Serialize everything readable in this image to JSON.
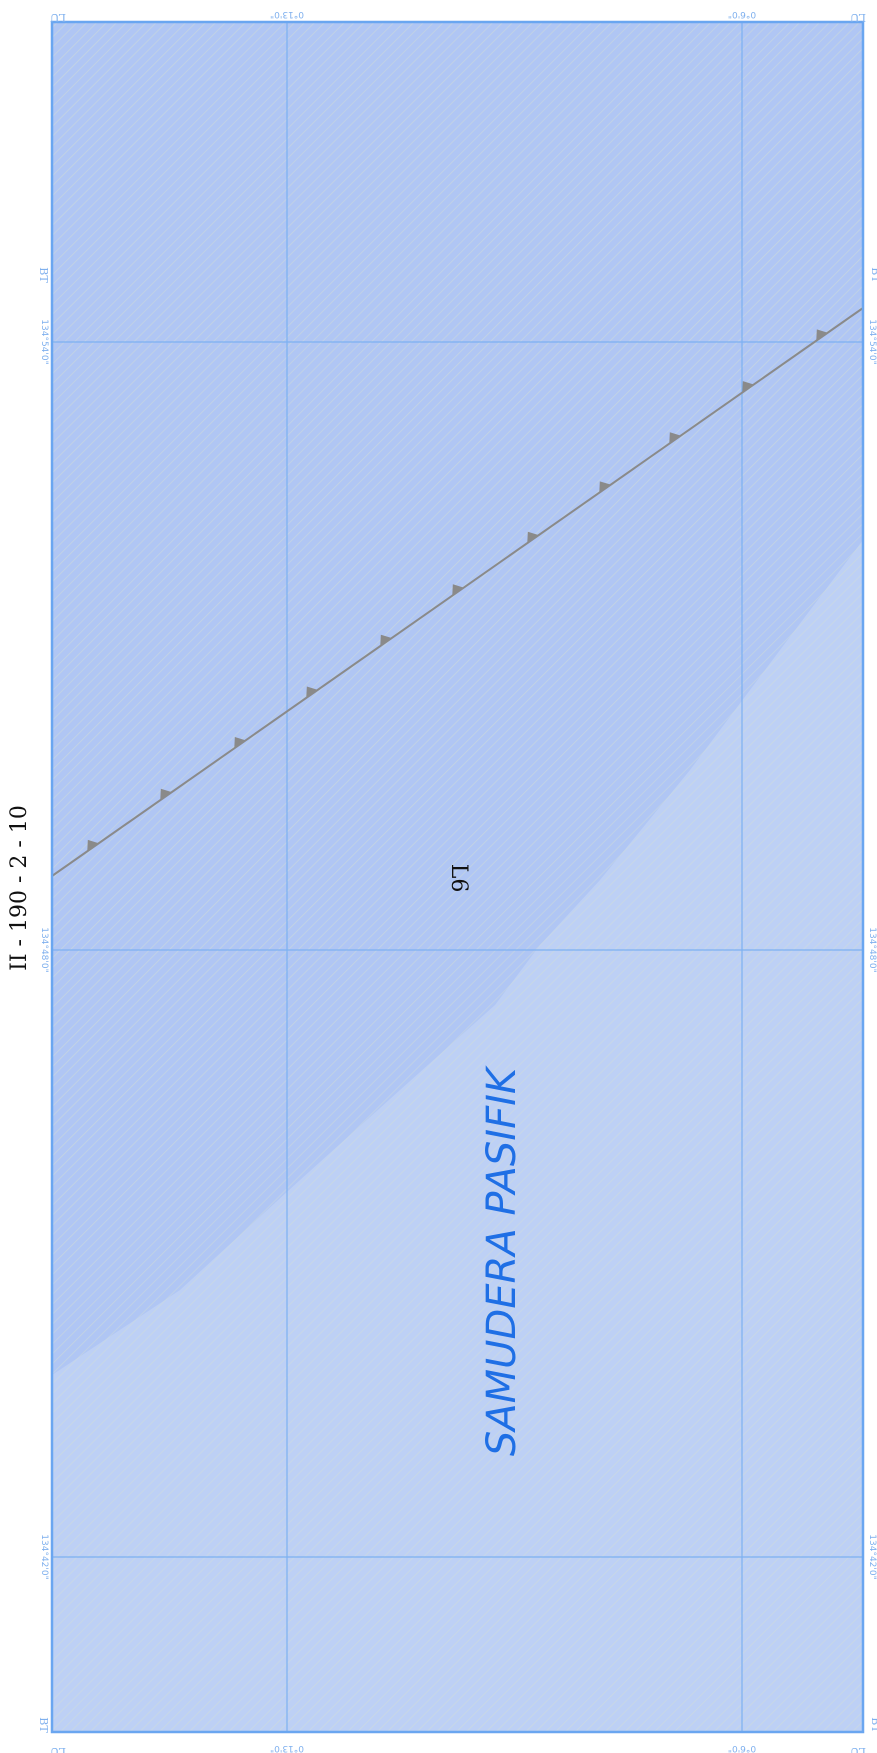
{
  "map": {
    "sheet_title": "II - 190 - 2 - 10",
    "ocean_label": "SAMUDERA PASIFIK",
    "area_code": "L6",
    "colors": {
      "ocean_light": "#bccff5",
      "ocean_deep": "#b0c7f3",
      "hatch": "#d3ded2",
      "frame": "#6aa6f0",
      "grid": "#7cb1f1",
      "boundary_line": "#8a8a8a",
      "ocean_text": "#1f6fe5"
    },
    "longitude_labels": [
      "134°42'0\"",
      "134°48'0\"",
      "134°54'0\""
    ],
    "latitude_labels": [
      "0°13'0\"",
      "0°6'0\""
    ],
    "corner_labels": {
      "lu": "LU",
      "bt": "BT"
    }
  }
}
